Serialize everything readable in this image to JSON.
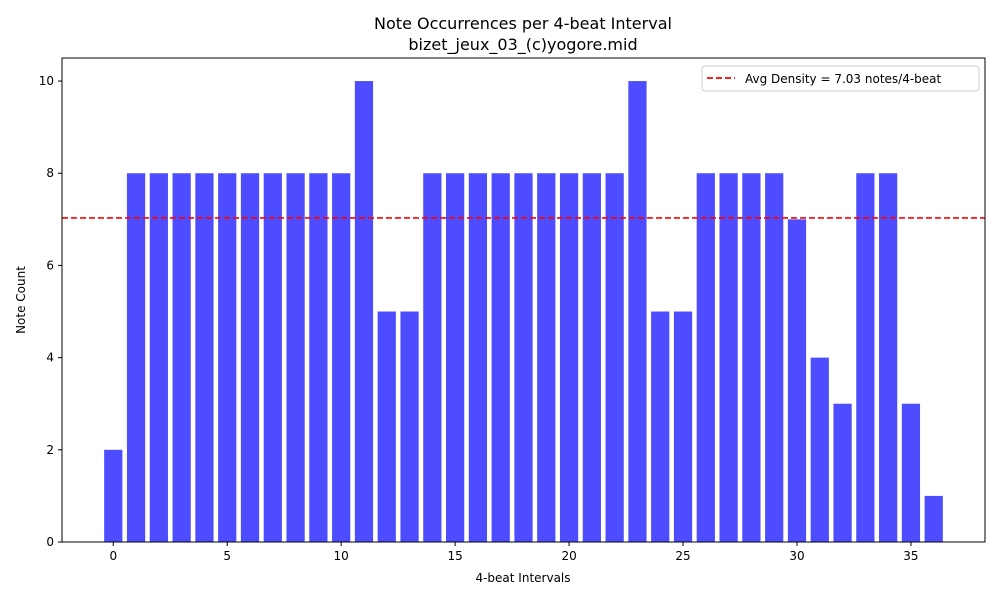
{
  "chart_data": {
    "type": "bar",
    "title": "Note Occurrences per 4-beat Interval",
    "subtitle": "bizet_jeux_03_(c)yogore.mid",
    "xlabel": "4-beat Intervals",
    "ylabel": "Note Count",
    "x": [
      0,
      1,
      2,
      3,
      4,
      5,
      6,
      7,
      8,
      9,
      10,
      11,
      12,
      13,
      14,
      15,
      16,
      17,
      18,
      19,
      20,
      21,
      22,
      23,
      24,
      25,
      26,
      27,
      28,
      29,
      30,
      31,
      32,
      33,
      34,
      35,
      36
    ],
    "values": [
      2,
      8,
      8,
      8,
      8,
      8,
      8,
      8,
      8,
      8,
      8,
      10,
      5,
      5,
      8,
      8,
      8,
      8,
      8,
      8,
      8,
      8,
      8,
      10,
      5,
      5,
      8,
      8,
      8,
      8,
      7,
      4,
      3,
      8,
      8,
      3,
      1
    ],
    "xlim": [
      -2.25,
      38.25
    ],
    "ylim": [
      0,
      10.5
    ],
    "xticks": [
      0,
      5,
      10,
      15,
      20,
      25,
      30,
      35
    ],
    "yticks": [
      0,
      2,
      4,
      6,
      8,
      10
    ],
    "bar_color": "#4d4dff",
    "reference_line": {
      "value": 7.03,
      "color": "#ff0000",
      "style": "dashed",
      "label": "Avg Density = 7.03 notes/4-beat"
    },
    "legend_position": "top-right",
    "grid": false
  }
}
